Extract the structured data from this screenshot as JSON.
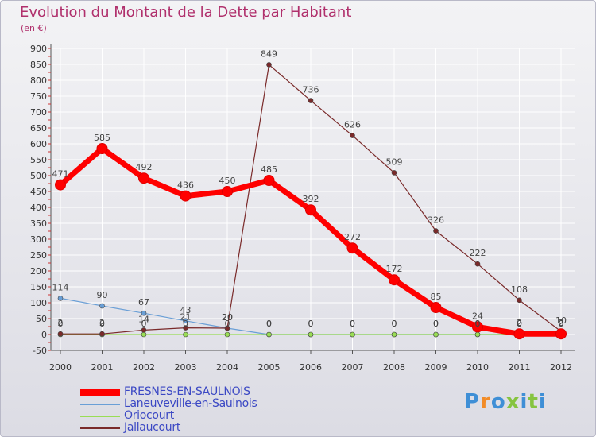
{
  "chart_data": {
    "type": "line",
    "title": "Evolution du Montant de la Dette par Habitant",
    "unit": "(en €)",
    "categories": [
      "2000",
      "2001",
      "2002",
      "2003",
      "2004",
      "2005",
      "2006",
      "2007",
      "2008",
      "2009",
      "2010",
      "2011",
      "2012"
    ],
    "ylim": [
      -50,
      900
    ],
    "yticks": [
      -50,
      0,
      50,
      100,
      150,
      200,
      250,
      300,
      350,
      400,
      450,
      500,
      550,
      600,
      650,
      700,
      750,
      800,
      850,
      900
    ],
    "grid": true,
    "legend_position": "bottom-left",
    "series": [
      {
        "name": "FRESNES-EN-SAULNOIS",
        "color": "#ff0000",
        "emphasis": true,
        "values": [
          471,
          585,
          492,
          436,
          450,
          485,
          392,
          272,
          172,
          85,
          24,
          2,
          2
        ]
      },
      {
        "name": "Laneuveville-en-Saulnois",
        "color": "#6a9fd6",
        "emphasis": false,
        "values": [
          114,
          90,
          67,
          43,
          20,
          0,
          0,
          0,
          0,
          0,
          0,
          0,
          0
        ]
      },
      {
        "name": "Oriocourt",
        "color": "#99dd55",
        "emphasis": false,
        "values": [
          0,
          0,
          0,
          0,
          0,
          0,
          0,
          0,
          0,
          0,
          0,
          0,
          0
        ]
      },
      {
        "name": "Jallaucourt",
        "color": "#7a2a2a",
        "emphasis": false,
        "values": [
          2,
          2,
          14,
          21,
          20,
          849,
          736,
          626,
          509,
          326,
          222,
          108,
          10
        ]
      }
    ]
  },
  "brand": {
    "letters": [
      "P",
      "r",
      "o",
      "x",
      "i",
      "t",
      "i"
    ],
    "colors": [
      "#3f8fd6",
      "#f28c28",
      "#3f8fd6",
      "#86c440",
      "#3f8fd6",
      "#86c440",
      "#3f8fd6"
    ]
  }
}
